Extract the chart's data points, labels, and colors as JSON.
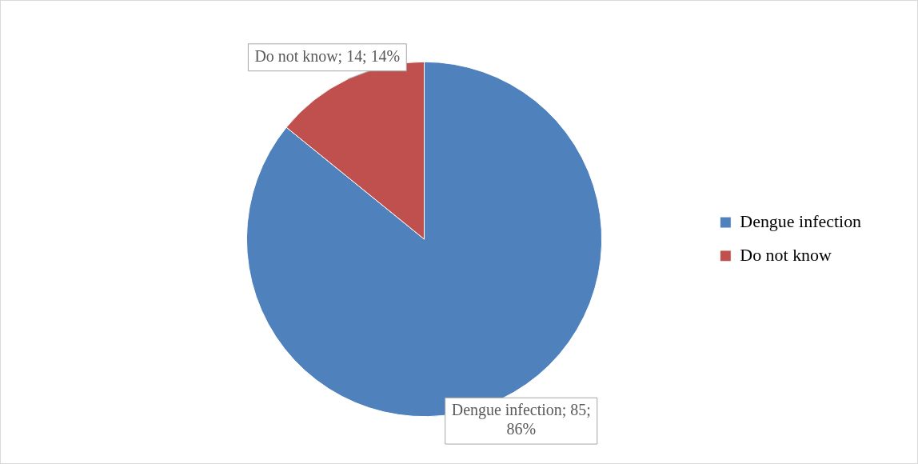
{
  "chart_data": {
    "type": "pie",
    "categories": [
      "Dengue infection",
      "Do not know"
    ],
    "values": [
      85,
      14
    ],
    "colors": [
      "#4f81bd",
      "#c0504d"
    ],
    "value_labels": [
      "Dengue infection; 85; 86%",
      "Do not know; 14; 14%"
    ],
    "legend": "right"
  }
}
